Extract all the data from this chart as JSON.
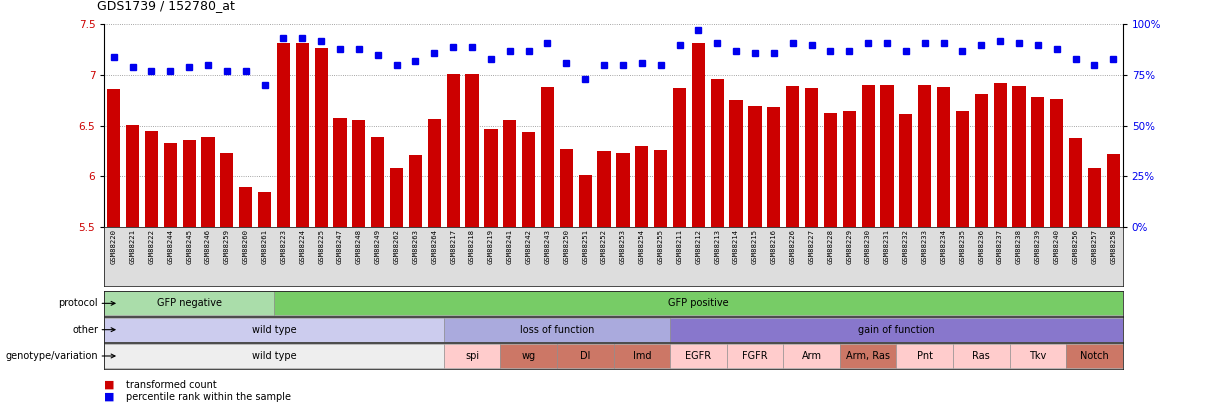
{
  "title": "GDS1739 / 152780_at",
  "samples": [
    "GSM88220",
    "GSM88221",
    "GSM88222",
    "GSM88244",
    "GSM88245",
    "GSM88246",
    "GSM88259",
    "GSM88260",
    "GSM88261",
    "GSM88223",
    "GSM88224",
    "GSM88225",
    "GSM88247",
    "GSM88248",
    "GSM88249",
    "GSM88262",
    "GSM88263",
    "GSM88264",
    "GSM88217",
    "GSM88218",
    "GSM88219",
    "GSM88241",
    "GSM88242",
    "GSM88243",
    "GSM88250",
    "GSM88251",
    "GSM88252",
    "GSM88253",
    "GSM88254",
    "GSM88255",
    "GSM88211",
    "GSM88212",
    "GSM88213",
    "GSM88214",
    "GSM88215",
    "GSM88216",
    "GSM88226",
    "GSM88227",
    "GSM88228",
    "GSM88229",
    "GSM88230",
    "GSM88231",
    "GSM88232",
    "GSM88233",
    "GSM88234",
    "GSM88235",
    "GSM88236",
    "GSM88237",
    "GSM88238",
    "GSM88239",
    "GSM88240",
    "GSM88256",
    "GSM88257",
    "GSM88258"
  ],
  "bar_values": [
    6.86,
    6.51,
    6.45,
    6.33,
    6.36,
    6.39,
    6.23,
    5.89,
    5.84,
    7.32,
    7.32,
    7.27,
    6.57,
    6.55,
    6.39,
    6.08,
    6.21,
    6.56,
    7.01,
    7.01,
    6.47,
    6.55,
    6.44,
    6.88,
    6.27,
    6.01,
    6.25,
    6.23,
    6.3,
    6.26,
    6.87,
    7.32,
    6.96,
    6.75,
    6.69,
    6.68,
    6.89,
    6.87,
    6.62,
    6.64,
    6.9,
    6.9,
    6.61,
    6.9,
    6.88,
    6.64,
    6.81,
    6.92,
    6.89,
    6.78,
    6.76,
    6.38,
    6.08,
    6.22
  ],
  "percentile_values": [
    84,
    79,
    77,
    77,
    79,
    80,
    77,
    77,
    70,
    93,
    93,
    92,
    88,
    88,
    85,
    80,
    82,
    86,
    89,
    89,
    83,
    87,
    87,
    91,
    81,
    73,
    80,
    80,
    81,
    80,
    90,
    97,
    91,
    87,
    86,
    86,
    91,
    90,
    87,
    87,
    91,
    91,
    87,
    91,
    91,
    87,
    90,
    92,
    91,
    90,
    88,
    83,
    80,
    83
  ],
  "bar_color": "#cc0000",
  "percentile_color": "#0000ee",
  "ylim_left": [
    5.5,
    7.5
  ],
  "ylim_right": [
    0,
    100
  ],
  "yticks_left": [
    5.5,
    6.0,
    6.5,
    7.0,
    7.5
  ],
  "ytick_labels_left": [
    "5.5",
    "6",
    "6.5",
    "7",
    "7.5"
  ],
  "yticks_right": [
    0,
    25,
    50,
    75,
    100
  ],
  "ytick_labels_right": [
    "0%",
    "25%",
    "50%",
    "75%",
    "100%"
  ],
  "protocol_groups": [
    {
      "label": "GFP negative",
      "start": 0,
      "end": 9,
      "color": "#aaddaa"
    },
    {
      "label": "GFP positive",
      "start": 9,
      "end": 54,
      "color": "#77cc66"
    }
  ],
  "other_groups": [
    {
      "label": "wild type",
      "start": 0,
      "end": 18,
      "color": "#ccccee"
    },
    {
      "label": "loss of function",
      "start": 18,
      "end": 30,
      "color": "#aaaadd"
    },
    {
      "label": "gain of function",
      "start": 30,
      "end": 54,
      "color": "#8877cc"
    }
  ],
  "genotype_groups": [
    {
      "label": "wild type",
      "start": 0,
      "end": 18,
      "color": "#eeeeee"
    },
    {
      "label": "spi",
      "start": 18,
      "end": 21,
      "color": "#ffcccc"
    },
    {
      "label": "wg",
      "start": 21,
      "end": 24,
      "color": "#cc7766"
    },
    {
      "label": "Dl",
      "start": 24,
      "end": 27,
      "color": "#cc7766"
    },
    {
      "label": "Imd",
      "start": 27,
      "end": 30,
      "color": "#cc7766"
    },
    {
      "label": "EGFR",
      "start": 30,
      "end": 33,
      "color": "#ffcccc"
    },
    {
      "label": "FGFR",
      "start": 33,
      "end": 36,
      "color": "#ffcccc"
    },
    {
      "label": "Arm",
      "start": 36,
      "end": 39,
      "color": "#ffcccc"
    },
    {
      "label": "Arm, Ras",
      "start": 39,
      "end": 42,
      "color": "#cc7766"
    },
    {
      "label": "Pnt",
      "start": 42,
      "end": 45,
      "color": "#ffcccc"
    },
    {
      "label": "Ras",
      "start": 45,
      "end": 48,
      "color": "#ffcccc"
    },
    {
      "label": "Tkv",
      "start": 48,
      "end": 51,
      "color": "#ffcccc"
    },
    {
      "label": "Notch",
      "start": 51,
      "end": 54,
      "color": "#cc7766"
    }
  ],
  "row_labels": [
    "protocol",
    "other",
    "genotype/variation"
  ],
  "legend_bar_label": "transformed count",
  "legend_pct_label": "percentile rank within the sample",
  "xtick_bg": "#dddddd",
  "chart_bg": "white"
}
